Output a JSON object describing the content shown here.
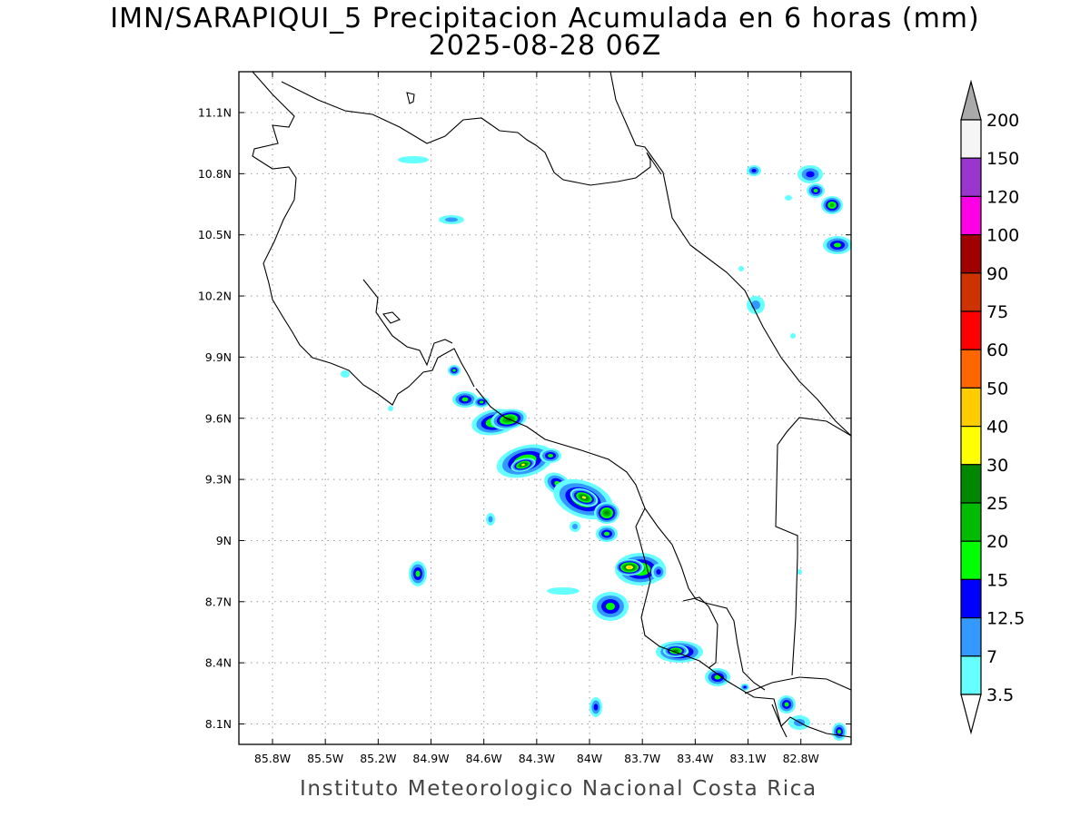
{
  "title": {
    "line1": "IMN/SARAPIQUI_5 Precipitacion Acumulada en 6 horas (mm)",
    "line2": "2025-08-28 06Z"
  },
  "footer": "Instituto Meteorologico Nacional Costa Rica",
  "map": {
    "lon_ticks": [
      "85.8W",
      "85.5W",
      "85.2W",
      "84.9W",
      "84.6W",
      "84.3W",
      "84W",
      "83.7W",
      "83.4W",
      "83.1W",
      "82.8W"
    ],
    "lat_ticks": [
      "11.1N",
      "10.8N",
      "10.5N",
      "10.2N",
      "9.9N",
      "9.6N",
      "9.3N",
      "9N",
      "8.7N",
      "8.4N",
      "8.1N"
    ]
  },
  "colorbar": {
    "labels": [
      "200",
      "150",
      "120",
      "100",
      "90",
      "75",
      "60",
      "50",
      "40",
      "30",
      "25",
      "20",
      "15",
      "12.5",
      "7",
      "3.5"
    ],
    "colors": [
      "#f5f5f5",
      "#9a35cf",
      "#ff00e6",
      "#a00000",
      "#cc3300",
      "#ff0000",
      "#ff6600",
      "#ffcc00",
      "#ffff00",
      "#008800",
      "#00bb00",
      "#00ff00",
      "#0000ff",
      "#3399ff",
      "#66ffff"
    ],
    "over_color": "#aaaaaa",
    "under_color": "#ffffff"
  }
}
